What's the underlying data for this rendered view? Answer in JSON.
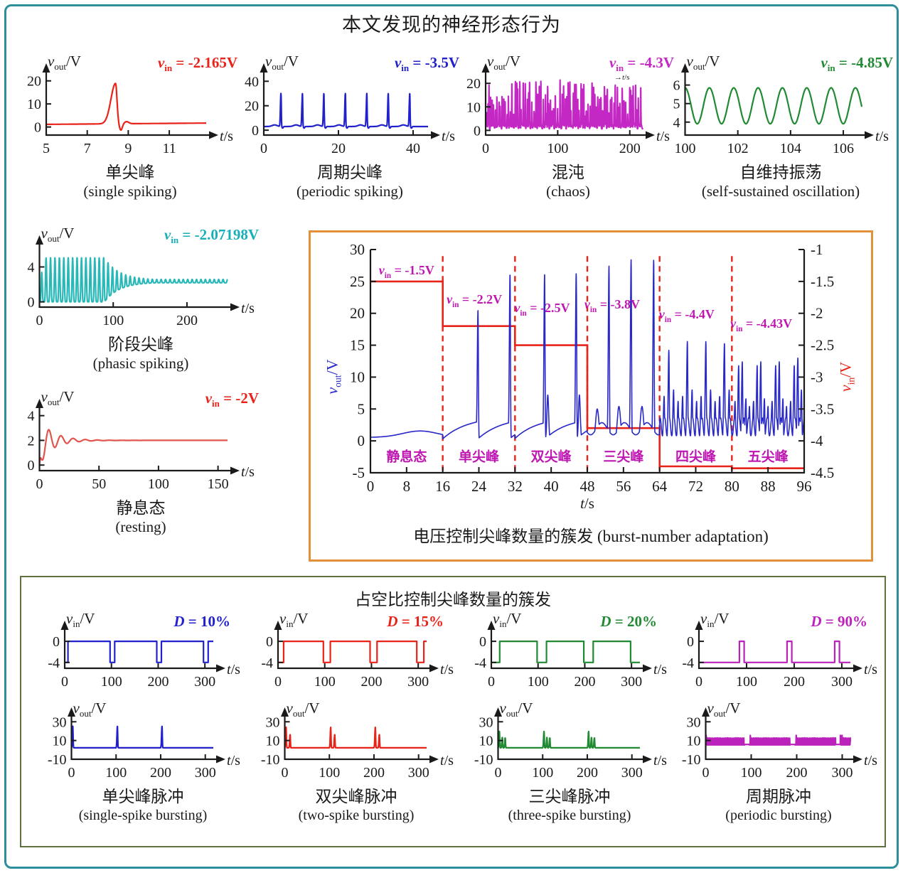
{
  "page": {
    "title": "本文发现的神经形态行为",
    "colors": {
      "outer_border": "#2d8e9c",
      "voltage_box_border": "#e2903a",
      "duty_box_border": "#60703f",
      "axis": "#1a1a1a",
      "magenta_label": "#bf17b2"
    }
  },
  "voltage_box": {
    "caption": "电压控制尖峰数量的簇发 (burst-number adaptation)"
  },
  "duty_box": {
    "title": "占空比控制尖峰数量的簇发"
  },
  "chart_data": [
    {
      "id": "single-spiking",
      "type": "line",
      "subtype": "small",
      "color": "#e8231a",
      "ylabel": {
        "var": "v",
        "sub": "out",
        "rest": "/V"
      },
      "annotation": {
        "var": "v",
        "sub": "in",
        "rest": " = -2.165V",
        "color": "#e8231a"
      },
      "xlabel": "t/s",
      "xlim": [
        5,
        12.8
      ],
      "ylim": [
        -3.5,
        23
      ],
      "xticks": [
        5,
        7,
        9,
        11
      ],
      "yticks": [
        0,
        10,
        20
      ],
      "signal": {
        "kind": "single_spike",
        "spike_t": 8.38,
        "peak": 17.5,
        "dip": -2.8,
        "bump": 0.9
      },
      "caption_cn": "单尖峰",
      "caption_en": "(single spiking)"
    },
    {
      "id": "periodic-spiking",
      "type": "line",
      "subtype": "small",
      "color": "#2222cc",
      "ylabel": {
        "var": "v",
        "sub": "out",
        "rest": "/V"
      },
      "annotation": {
        "var": "v",
        "sub": "in",
        "rest": " = -3.5V",
        "color": "#2222cc"
      },
      "xlabel": "t/s",
      "xlim": [
        0,
        44
      ],
      "ylim": [
        -4,
        46
      ],
      "xticks": [
        0,
        20,
        40
      ],
      "yticks": [
        0,
        20,
        40
      ],
      "signal": {
        "kind": "spike_train",
        "base": 3,
        "first": 4.6,
        "period": 5.75,
        "n": 7,
        "peak": 27,
        "hump": 1.3
      },
      "caption_cn": "周期尖峰",
      "caption_en": "(periodic spiking)"
    },
    {
      "id": "chaos",
      "type": "line",
      "subtype": "small",
      "color": "#c428c4",
      "ylabel": {
        "var": "v",
        "sub": "out",
        "rest": "/V"
      },
      "annotation": {
        "var": "v",
        "sub": "in",
        "rest": " = -4.3V",
        "color": "#c428c4"
      },
      "xlabel": "t/s",
      "mini_label": "t/s",
      "xlim": [
        0,
        218
      ],
      "ylim": [
        -2,
        24
      ],
      "xticks": [
        0,
        100,
        200
      ],
      "yticks": [
        0,
        10,
        20
      ],
      "signal": {
        "kind": "chaos",
        "seed": 11,
        "base": 1.8,
        "hmin": 5,
        "hmax": 19.5,
        "gmin": 1.2,
        "gmax": 3.4
      },
      "caption_cn": "混沌",
      "caption_en": "(chaos)"
    },
    {
      "id": "self-sustained-oscillation",
      "type": "line",
      "subtype": "small",
      "color": "#218a33",
      "ylabel": {
        "var": "v",
        "sub": "out",
        "rest": "/V"
      },
      "annotation": {
        "var": "v",
        "sub": "in",
        "rest": " = -4.85V",
        "color": "#218a33"
      },
      "xlabel": "t/s",
      "xlim": [
        100,
        106.7
      ],
      "ylim": [
        3.3,
        6.6
      ],
      "xticks": [
        100,
        102,
        104,
        106
      ],
      "yticks": [
        4,
        5,
        6
      ],
      "signal": {
        "kind": "sine",
        "mean": 4.88,
        "amp": 0.97,
        "period": 0.923,
        "t0": 100
      },
      "caption_cn": "自维持振荡",
      "caption_en": "(self-sustained oscillation)"
    },
    {
      "id": "phasic-spiking",
      "type": "line",
      "subtype": "small",
      "color": "#28b8b8",
      "ylabel": {
        "var": "v",
        "sub": "out",
        "rest": "/V"
      },
      "annotation": {
        "var": "v",
        "sub": "in",
        "rest": " = -2.07198V",
        "color": "#17b0b8"
      },
      "xlabel": "t/s",
      "xlim": [
        0,
        255
      ],
      "ylim": [
        -0.6,
        6.4
      ],
      "xticks": [
        0,
        100,
        200
      ],
      "yticks": [
        0,
        4
      ],
      "signal": {
        "kind": "phasic",
        "period": 6.0,
        "decay_start": 88,
        "tau": 20
      },
      "caption_cn": "阶段尖峰",
      "caption_en": "(phasic spiking)"
    },
    {
      "id": "resting",
      "type": "line",
      "subtype": "small",
      "color": "#e0554d",
      "ylabel": {
        "var": "v",
        "sub": "out",
        "rest": "/V"
      },
      "annotation": {
        "var": "v",
        "sub": "in",
        "rest": " = -2V",
        "color": "#e8231a"
      },
      "xlabel": "t/s",
      "xlim": [
        0,
        158
      ],
      "ylim": [
        -0.45,
        4.5
      ],
      "xticks": [
        0,
        50,
        100,
        150
      ],
      "yticks": [
        0,
        2,
        4
      ],
      "signal": {
        "kind": "damped",
        "steady": 2,
        "amp": 1.7,
        "tau": 12,
        "period": 10.2,
        "phase": 2.93
      },
      "caption_cn": "静息态",
      "caption_en": "(resting)"
    },
    {
      "id": "burst-number-adaptation",
      "type": "line",
      "subtype": "big",
      "color": "#2929c8",
      "step_color": "#e8231a",
      "left_axis": {
        "label": {
          "var": "v",
          "sub": "out",
          "rest": "/V"
        },
        "color": "#2929c8",
        "ticks": [
          30,
          25,
          20,
          15,
          10,
          5,
          0,
          -5
        ],
        "lim": [
          -5,
          30
        ]
      },
      "right_axis": {
        "label": {
          "var": "v",
          "sub": "in",
          "rest": "/V"
        },
        "color": "#e8231a",
        "ticks": [
          -1,
          -1.5,
          -2,
          -2.5,
          -3,
          -3.5,
          -4,
          -4.5
        ],
        "lim": [
          -4.5,
          -1
        ]
      },
      "xlabel": "t/s",
      "xlim": [
        0,
        96
      ],
      "ylim": [
        -5,
        30
      ],
      "xticks": [
        0,
        8,
        16,
        24,
        32,
        40,
        48,
        56,
        64,
        72,
        80,
        88,
        96
      ],
      "vin_steps": [
        {
          "t0": 0,
          "t1": 16,
          "vin": -1.5
        },
        {
          "t0": 16,
          "t1": 32,
          "vin": -2.2
        },
        {
          "t0": 32,
          "t1": 48,
          "vin": -2.5
        },
        {
          "t0": 48,
          "t1": 64,
          "vin": -3.8
        },
        {
          "t0": 64,
          "t1": 80,
          "vin": -4.4
        },
        {
          "t0": 80,
          "t1": 96,
          "vin": -4.43
        }
      ],
      "dashed_lines": [
        16,
        32,
        48,
        64,
        80
      ],
      "region_labels": [
        {
          "x": 8,
          "y": -2.3,
          "text": "静息态"
        },
        {
          "x": 24,
          "y": -2.3,
          "text": "单尖峰"
        },
        {
          "x": 40,
          "y": -2.3,
          "text": "双尖峰"
        },
        {
          "x": 56,
          "y": -2.3,
          "text": "三尖峰"
        },
        {
          "x": 72,
          "y": -2.3,
          "text": "四尖峰"
        },
        {
          "x": 88,
          "y": -2.3,
          "text": "五尖峰"
        }
      ],
      "vin_annotations": [
        {
          "x": 8,
          "y": 26.6,
          "var": "v",
          "sub": "in",
          "rest": " = -1.5V"
        },
        {
          "x": 23,
          "y": 22.0,
          "var": "v",
          "sub": "in",
          "rest": " = -2.2V"
        },
        {
          "x": 38,
          "y": 20.6,
          "var": "v",
          "sub": "in",
          "rest": " = -2.5V"
        },
        {
          "x": 53.5,
          "y": 21.2,
          "var": "v",
          "sub": "in",
          "rest": " = -3.8V"
        },
        {
          "x": 70,
          "y": 19.6,
          "var": "v",
          "sub": "in",
          "rest": " = -4.4V"
        },
        {
          "x": 86.5,
          "y": 18.2,
          "var": "v",
          "sub": "in",
          "rest": " = -4.43V"
        }
      ],
      "signal": {
        "kind": "burst_adaptation",
        "spikes": [
          {
            "t": 23.8,
            "p": 20.5
          },
          {
            "t": 30.9,
            "p": 26.2
          },
          {
            "t": 38.55,
            "p": 26.2
          },
          {
            "t": 39.25,
            "p": 7.2,
            "w": 0.28
          },
          {
            "t": 45.55,
            "p": 26.3
          },
          {
            "t": 46.25,
            "p": 7.2,
            "w": 0.28
          },
          {
            "t": 50.2,
            "p": 5.0,
            "w": 0.5
          },
          {
            "t": 52.8,
            "p": 27.4
          },
          {
            "t": 55.0,
            "p": 5.4,
            "w": 0.5
          },
          {
            "t": 57.7,
            "p": 28.4
          },
          {
            "t": 60.1,
            "p": 5.4,
            "w": 0.5
          },
          {
            "t": 62.7,
            "p": 28.4
          },
          {
            "t": 65.0,
            "p": 7.0
          },
          {
            "t": 66.05,
            "p": 14.2
          },
          {
            "t": 67.1,
            "p": 8.0
          },
          {
            "t": 68.1,
            "p": 6.2
          },
          {
            "t": 69.1,
            "p": 7.0
          },
          {
            "t": 70.15,
            "p": 15.6
          },
          {
            "t": 71.2,
            "p": 8.0
          },
          {
            "t": 72.2,
            "p": 6.2
          },
          {
            "t": 73.2,
            "p": 7.0
          },
          {
            "t": 74.25,
            "p": 15.6
          },
          {
            "t": 75.3,
            "p": 8.0
          },
          {
            "t": 76.3,
            "p": 6.2
          },
          {
            "t": 77.3,
            "p": 7.0
          },
          {
            "t": 78.35,
            "p": 15.3
          },
          {
            "t": 79.4,
            "p": 8.0
          },
          {
            "t": 80.7,
            "p": 6.2
          },
          {
            "t": 81.5,
            "p": 11.8
          },
          {
            "t": 82.3,
            "p": 12.4
          },
          {
            "t": 83.1,
            "p": 6.6
          },
          {
            "t": 83.9,
            "p": 5.4
          },
          {
            "t": 84.8,
            "p": 6.2
          },
          {
            "t": 85.6,
            "p": 11.8
          },
          {
            "t": 86.4,
            "p": 12.4
          },
          {
            "t": 87.2,
            "p": 6.6
          },
          {
            "t": 88.0,
            "p": 5.4
          },
          {
            "t": 88.9,
            "p": 6.2
          },
          {
            "t": 89.7,
            "p": 11.8
          },
          {
            "t": 90.5,
            "p": 12.4
          },
          {
            "t": 91.3,
            "p": 6.6
          },
          {
            "t": 92.1,
            "p": 5.4
          },
          {
            "t": 93.0,
            "p": 6.2
          },
          {
            "t": 93.8,
            "p": 11.8
          },
          {
            "t": 94.6,
            "p": 13.0
          },
          {
            "t": 95.4,
            "p": 8.0
          }
        ]
      }
    },
    {
      "id": "duty-input-10",
      "type": "line",
      "subtype": "input",
      "color": "#2222cc",
      "ylabel": {
        "var": "v",
        "sub": "in",
        "rest": "/V"
      },
      "annotation": {
        "var": "D",
        "sub": "",
        "rest": " = 10%",
        "color": "#2222cc"
      },
      "xlabel": "t/s",
      "xlim": [
        0,
        318
      ],
      "ylim": [
        -5.1,
        1.9
      ],
      "xticks": [
        0,
        100,
        200,
        300
      ],
      "yticks": [
        0,
        -4
      ],
      "signal": {
        "kind": "square",
        "period": 100,
        "duty_low_pct": 10,
        "phase": -3,
        "low": -4,
        "high": 0
      }
    },
    {
      "id": "duty-input-15",
      "type": "line",
      "subtype": "input",
      "color": "#e8231a",
      "ylabel": {
        "var": "v",
        "sub": "in",
        "rest": "/V"
      },
      "annotation": {
        "var": "D",
        "sub": "",
        "rest": " = 15%",
        "color": "#e8231a"
      },
      "xlabel": "t/s",
      "xlim": [
        0,
        318
      ],
      "ylim": [
        -5.1,
        1.9
      ],
      "xticks": [
        0,
        100,
        200,
        300
      ],
      "yticks": [
        0,
        -4
      ],
      "signal": {
        "kind": "square",
        "period": 100,
        "duty_low_pct": 15,
        "phase": -3,
        "low": -4,
        "high": 0
      }
    },
    {
      "id": "duty-input-20",
      "type": "line",
      "subtype": "input",
      "color": "#218a33",
      "ylabel": {
        "var": "v",
        "sub": "in",
        "rest": "/V"
      },
      "annotation": {
        "var": "D",
        "sub": "",
        "rest": " = 20%",
        "color": "#218a33"
      },
      "xlabel": "t/s",
      "xlim": [
        0,
        318
      ],
      "ylim": [
        -5.1,
        1.9
      ],
      "xticks": [
        0,
        100,
        200,
        300
      ],
      "yticks": [
        0,
        -4
      ],
      "signal": {
        "kind": "square",
        "period": 100,
        "duty_low_pct": 20,
        "phase": -2,
        "low": -4,
        "high": 0
      }
    },
    {
      "id": "duty-input-90",
      "type": "line",
      "subtype": "input",
      "color": "#bb22bb",
      "ylabel": {
        "var": "v",
        "sub": "in",
        "rest": "/V"
      },
      "annotation": {
        "var": "D",
        "sub": "",
        "rest": " = 90%",
        "color": "#bb22bb"
      },
      "xlabel": "t/s",
      "xlim": [
        0,
        318
      ],
      "ylim": [
        -5.1,
        1.9
      ],
      "xticks": [
        0,
        100,
        200,
        300
      ],
      "yticks": [
        0,
        -4
      ],
      "signal": {
        "kind": "square",
        "period": 100,
        "duty_low_pct": 90,
        "phase": -5,
        "low": -4,
        "high": 0
      }
    },
    {
      "id": "duty-output-single",
      "type": "line",
      "subtype": "output",
      "color": "#2222cc",
      "ylabel": {
        "var": "v",
        "sub": "out",
        "rest": "/V"
      },
      "xlabel": "t/s",
      "xlim": [
        0,
        318
      ],
      "ylim": [
        -10,
        34
      ],
      "xticks": [
        0,
        100,
        200,
        300
      ],
      "yticks": [
        30,
        10,
        -10
      ],
      "signal": {
        "kind": "burst_out",
        "bursts": [
          3,
          103,
          203
        ],
        "spikes": [
          {
            "dt": 0,
            "h": 23
          }
        ],
        "base": 2.2
      },
      "caption_cn": "单尖峰脉冲",
      "caption_en": "(single-spike bursting)"
    },
    {
      "id": "duty-output-two",
      "type": "line",
      "subtype": "output",
      "color": "#e8231a",
      "ylabel": {
        "var": "v",
        "sub": "out",
        "rest": "/V"
      },
      "xlabel": "t/s",
      "xlim": [
        0,
        318
      ],
      "ylim": [
        -10,
        34
      ],
      "xticks": [
        0,
        100,
        200,
        300
      ],
      "yticks": [
        30,
        10,
        -10
      ],
      "signal": {
        "kind": "burst_out",
        "bursts": [
          3,
          103,
          203
        ],
        "spikes": [
          {
            "dt": 0,
            "h": 22
          },
          {
            "dt": 9,
            "h": 14
          }
        ],
        "base": 2.2
      },
      "caption_cn": "双尖峰脉冲",
      "caption_en": "(two-spike bursting)"
    },
    {
      "id": "duty-output-three",
      "type": "line",
      "subtype": "output",
      "color": "#218a33",
      "ylabel": {
        "var": "v",
        "sub": "out",
        "rest": "/V"
      },
      "xlabel": "t/s",
      "xlim": [
        0,
        318
      ],
      "ylim": [
        -10,
        34
      ],
      "xticks": [
        0,
        100,
        200,
        300
      ],
      "yticks": [
        30,
        10,
        -10
      ],
      "signal": {
        "kind": "burst_out",
        "bursts": [
          3,
          103,
          203
        ],
        "spikes": [
          {
            "dt": 0,
            "h": 17.5
          },
          {
            "dt": 6.5,
            "h": 11
          },
          {
            "dt": 13,
            "h": 10.5
          }
        ],
        "base": 2.2
      },
      "caption_cn": "三尖峰脉冲",
      "caption_en": "(three-spike bursting)"
    },
    {
      "id": "duty-output-periodic",
      "type": "line",
      "subtype": "output",
      "color": "#bb22bb",
      "ylabel": {
        "var": "v",
        "sub": "out",
        "rest": "/V"
      },
      "xlabel": "t/s",
      "xlim": [
        0,
        318
      ],
      "ylim": [
        -10,
        34
      ],
      "xticks": [
        0,
        100,
        200,
        300
      ],
      "yticks": [
        30,
        10,
        -10
      ],
      "signal": {
        "kind": "periodic_bursting",
        "base": 5.3,
        "amp": 7.5,
        "period": 3.6,
        "gap_start": 85.5,
        "gap_end": 96,
        "gap_level": 5.8,
        "bonus": 2.8
      },
      "caption_cn": "周期脉冲",
      "caption_en": "(periodic bursting)"
    }
  ]
}
